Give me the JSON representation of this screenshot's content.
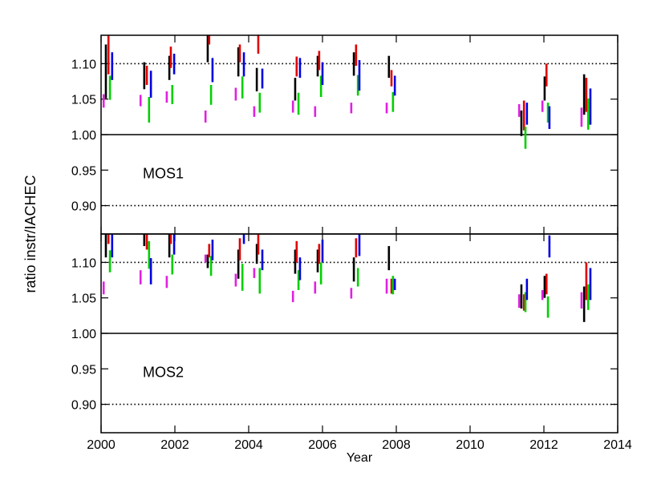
{
  "chart_data": [
    {
      "type": "range",
      "label": "MOS1",
      "ylabel": "ratio instr/IACHEC",
      "ylim": [
        0.86,
        1.14
      ],
      "yticks": [
        {
          "value": 0.9,
          "label": "0.90"
        },
        {
          "value": 0.95,
          "label": "0.95"
        },
        {
          "value": 1.0,
          "label": "1.00"
        },
        {
          "value": 1.05,
          "label": "1.05"
        },
        {
          "value": 1.1,
          "label": "1.10"
        }
      ],
      "hlines": [
        {
          "value": 1.1,
          "style": "dotted"
        },
        {
          "value": 1.0,
          "style": "solid"
        },
        {
          "value": 0.9,
          "style": "dotted"
        }
      ],
      "xlim": [
        2000,
        2014
      ],
      "series": [
        {
          "color": "#e020e0",
          "x": [
            2000.07,
            2001.07,
            2001.78,
            2002.83,
            2003.65,
            2004.15,
            2005.2,
            2005.8,
            2006.78,
            2007.74,
            2011.33,
            2011.96,
            2013.02
          ],
          "low": [
            1.038,
            1.04,
            1.045,
            1.017,
            1.048,
            1.025,
            1.031,
            1.025,
            1.03,
            1.03,
            1.025,
            1.032,
            1.011
          ],
          "high": [
            1.057,
            1.056,
            1.061,
            1.034,
            1.066,
            1.04,
            1.048,
            1.04,
            1.045,
            1.045,
            1.043,
            1.048,
            1.038
          ]
        },
        {
          "color": "#000000",
          "x": [
            2000.13,
            2001.17,
            2001.85,
            2002.89,
            2003.72,
            2004.22,
            2005.26,
            2005.87,
            2006.85,
            2007.8,
            2011.39,
            2012.02,
            2013.09
          ],
          "low": [
            1.051,
            1.064,
            1.077,
            1.102,
            1.082,
            1.061,
            1.048,
            1.082,
            1.083,
            1.08,
            0.998,
            1.048,
            1.028
          ],
          "high": [
            1.127,
            1.102,
            1.111,
            1.143,
            1.123,
            1.094,
            1.08,
            1.111,
            1.116,
            1.111,
            1.034,
            1.082,
            1.085
          ]
        },
        {
          "color": "#e00000",
          "x": [
            2000.2,
            2001.24,
            2001.89,
            2002.93,
            2003.76,
            2004.26,
            2005.3,
            2005.91,
            2006.91,
            2007.87,
            2011.46,
            2012.07,
            2013.15
          ],
          "low": [
            1.085,
            1.07,
            1.094,
            1.127,
            1.102,
            1.114,
            1.082,
            1.091,
            1.097,
            1.068,
            1.006,
            1.068,
            1.032
          ],
          "high": [
            1.15,
            1.097,
            1.124,
            1.15,
            1.127,
            1.15,
            1.11,
            1.118,
            1.127,
            1.091,
            1.048,
            1.1,
            1.08
          ]
        },
        {
          "color": "#00d000",
          "x": [
            2000.24,
            2001.3,
            2001.93,
            2002.98,
            2003.83,
            2004.3,
            2005.35,
            2005.96,
            2006.96,
            2007.91,
            2011.5,
            2012.11,
            2013.2
          ],
          "low": [
            1.049,
            1.017,
            1.043,
            1.042,
            1.051,
            1.031,
            1.028,
            1.053,
            1.055,
            1.032,
            0.98,
            1.017,
            1.007
          ],
          "high": [
            1.083,
            1.053,
            1.07,
            1.07,
            1.082,
            1.059,
            1.059,
            1.083,
            1.084,
            1.06,
            1.011,
            1.045,
            1.051
          ]
        },
        {
          "color": "#0000e0",
          "x": [
            2000.3,
            2001.35,
            2001.98,
            2003.02,
            2003.87,
            2004.37,
            2005.39,
            2006.0,
            2007.0,
            2007.96,
            2011.54,
            2012.15,
            2013.26
          ],
          "low": [
            1.077,
            1.052,
            1.085,
            1.074,
            1.082,
            1.065,
            1.08,
            1.07,
            1.062,
            1.055,
            1.014,
            1.008,
            1.014
          ],
          "high": [
            1.116,
            1.09,
            1.114,
            1.108,
            1.116,
            1.093,
            1.108,
            1.102,
            1.105,
            1.083,
            1.045,
            1.04,
            1.065
          ]
        }
      ]
    },
    {
      "type": "range",
      "label": "MOS2",
      "xlabel": "Year",
      "ylim": [
        0.86,
        1.14
      ],
      "yticks": [
        {
          "value": 0.9,
          "label": "0.90"
        },
        {
          "value": 0.95,
          "label": "0.95"
        },
        {
          "value": 1.0,
          "label": "1.00"
        },
        {
          "value": 1.05,
          "label": "1.05"
        },
        {
          "value": 1.1,
          "label": "1.10"
        }
      ],
      "hlines": [
        {
          "value": 1.1,
          "style": "dotted"
        },
        {
          "value": 1.0,
          "style": "solid"
        },
        {
          "value": 0.9,
          "style": "dotted"
        }
      ],
      "xlim": [
        2000,
        2014
      ],
      "xticks": [
        2000,
        2002,
        2004,
        2006,
        2008,
        2010,
        2012,
        2014
      ],
      "series": [
        {
          "color": "#e020e0",
          "x": [
            2000.07,
            2001.07,
            2001.78,
            2002.83,
            2003.65,
            2004.15,
            2005.2,
            2005.8,
            2006.78,
            2007.74,
            2011.33,
            2011.96,
            2013.02
          ],
          "low": [
            1.055,
            1.069,
            1.064,
            1.1,
            1.066,
            1.078,
            1.044,
            1.056,
            1.049,
            1.056,
            1.036,
            1.047,
            1.035
          ],
          "high": [
            1.073,
            1.089,
            1.081,
            1.111,
            1.084,
            1.092,
            1.06,
            1.073,
            1.064,
            1.077,
            1.055,
            1.061,
            1.058
          ]
        },
        {
          "color": "#000000",
          "x": [
            2000.13,
            2001.17,
            2001.85,
            2002.89,
            2003.72,
            2004.22,
            2005.26,
            2005.87,
            2006.85,
            2007.8,
            2011.39,
            2012.02,
            2013.09
          ],
          "low": [
            1.107,
            1.123,
            1.107,
            1.092,
            1.077,
            1.098,
            1.084,
            1.086,
            1.073,
            1.089,
            1.035,
            1.05,
            1.016
          ],
          "high": [
            1.141,
            1.15,
            1.145,
            1.111,
            1.118,
            1.126,
            1.118,
            1.118,
            1.107,
            1.123,
            1.069,
            1.081,
            1.066
          ]
        },
        {
          "color": "#e00000",
          "x": [
            2000.2,
            2001.24,
            2001.89,
            2002.93,
            2003.76,
            2004.26,
            2005.3,
            2005.91,
            2006.91,
            2007.87,
            2011.46,
            2012.07,
            2013.15
          ],
          "low": [
            1.126,
            1.118,
            1.126,
            1.107,
            1.103,
            1.111,
            1.1,
            1.098,
            1.107,
            1.056,
            1.032,
            1.055,
            1.047
          ],
          "high": [
            1.15,
            1.15,
            1.15,
            1.126,
            1.134,
            1.15,
            1.13,
            1.126,
            1.134,
            1.077,
            1.055,
            1.084,
            1.1
          ]
        },
        {
          "color": "#00d000",
          "x": [
            2000.24,
            2001.3,
            2001.93,
            2002.98,
            2003.83,
            2004.3,
            2005.35,
            2005.96,
            2006.96,
            2007.91,
            2011.5,
            2012.11,
            2013.2
          ],
          "low": [
            1.086,
            1.091,
            1.083,
            1.081,
            1.06,
            1.056,
            1.061,
            1.069,
            1.066,
            1.055,
            1.03,
            1.022,
            1.033
          ],
          "high": [
            1.117,
            1.13,
            1.111,
            1.109,
            1.098,
            1.092,
            1.089,
            1.1,
            1.092,
            1.081,
            1.058,
            1.052,
            1.069
          ]
        },
        {
          "color": "#0000e0",
          "x": [
            2000.3,
            2001.35,
            2001.98,
            2003.02,
            2003.87,
            2004.37,
            2005.39,
            2006.0,
            2007.0,
            2007.96,
            2011.54,
            2012.15,
            2013.26
          ],
          "low": [
            1.107,
            1.069,
            1.111,
            1.103,
            1.126,
            1.089,
            1.075,
            1.1,
            1.109,
            1.061,
            1.047,
            1.107,
            1.047
          ],
          "high": [
            1.15,
            1.106,
            1.15,
            1.132,
            1.15,
            1.118,
            1.107,
            1.132,
            1.14,
            1.077,
            1.077,
            1.138,
            1.092
          ]
        }
      ]
    }
  ]
}
